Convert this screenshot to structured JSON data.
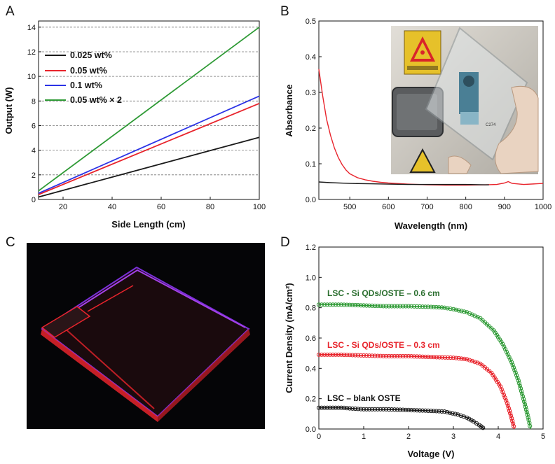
{
  "panels": {
    "a": "A",
    "b": "B",
    "c": "C",
    "d": "D"
  },
  "colors": {
    "black": "#1a1a1a",
    "red": "#e8242c",
    "blue": "#2b33e6",
    "green": "#2e9a35",
    "green_dark": "#2a6e2e"
  },
  "chart_data": [
    {
      "panel": "A",
      "type": "line",
      "xlabel": "Side Length  (cm)",
      "ylabel": "Output (W)",
      "xlim": [
        10,
        100
      ],
      "ylim": [
        0,
        14.5
      ],
      "xticks": [
        20,
        40,
        60,
        80,
        100
      ],
      "yticks": [
        0,
        2,
        4,
        6,
        8,
        10,
        12,
        14
      ],
      "grid": "horizontal dashed",
      "legend": "top-left",
      "series": [
        {
          "name": "0.025 wt%",
          "color": "#1a1a1a",
          "x": [
            10,
            100
          ],
          "y": [
            0.2,
            5.05
          ]
        },
        {
          "name": "0.05 wt%",
          "color": "#e8242c",
          "x": [
            10,
            100
          ],
          "y": [
            0.4,
            7.8
          ]
        },
        {
          "name": "0.1 wt%",
          "color": "#2b33e6",
          "x": [
            10,
            100
          ],
          "y": [
            0.5,
            8.4
          ]
        },
        {
          "name": "0.05 wt%  × 2",
          "color": "#2e9a35",
          "x": [
            10,
            100
          ],
          "y": [
            0.7,
            14.0
          ]
        }
      ]
    },
    {
      "panel": "B",
      "type": "line",
      "xlabel": "Wavelength (nm)",
      "ylabel": "Absorbance",
      "xlim": [
        420,
        1000
      ],
      "ylim": [
        0,
        0.5
      ],
      "xticks": [
        500,
        600,
        700,
        800,
        900,
        1000
      ],
      "yticks": [
        0.0,
        0.1,
        0.2,
        0.3,
        0.4,
        0.5
      ],
      "series": [
        {
          "color": "#e8242c",
          "x": [
            420,
            430,
            440,
            450,
            460,
            470,
            480,
            490,
            500,
            520,
            540,
            560,
            580,
            600,
            650,
            700,
            750,
            800,
            850,
            880,
            900,
            910,
            920,
            950,
            1000
          ],
          "y": [
            0.365,
            0.29,
            0.225,
            0.18,
            0.145,
            0.118,
            0.098,
            0.083,
            0.072,
            0.061,
            0.055,
            0.051,
            0.048,
            0.046,
            0.043,
            0.041,
            0.04,
            0.04,
            0.041,
            0.042,
            0.046,
            0.05,
            0.045,
            0.042,
            0.045
          ]
        },
        {
          "color": "#1a1a1a",
          "x": [
            420,
            450,
            500,
            550,
            600,
            650,
            700,
            750,
            800,
            850,
            860
          ],
          "y": [
            0.049,
            0.047,
            0.045,
            0.044,
            0.043,
            0.042,
            0.042,
            0.042,
            0.042,
            0.041,
            0.041
          ]
        }
      ],
      "photo": {
        "photo_label": "C274"
      }
    },
    {
      "panel": "D",
      "type": "line",
      "xlabel": "Voltage (V)",
      "ylabel": "Current Density (mA/cm²)",
      "xlim": [
        0,
        5
      ],
      "ylim": [
        0,
        1.2
      ],
      "xticks": [
        0,
        1,
        2,
        3,
        4,
        5
      ],
      "yticks": [
        0.0,
        0.2,
        0.4,
        0.6,
        0.8,
        1.0,
        1.2
      ],
      "series": [
        {
          "name": "LSC - Si QDs/OSTE – 0.6 cm",
          "color": "#2e9a35",
          "x": [
            0,
            0.5,
            1,
            1.5,
            2,
            2.5,
            2.8,
            3.0,
            3.3,
            3.6,
            3.9,
            4.1,
            4.3,
            4.45,
            4.58,
            4.68,
            4.72
          ],
          "y": [
            0.82,
            0.82,
            0.815,
            0.81,
            0.81,
            0.805,
            0.8,
            0.79,
            0.77,
            0.73,
            0.65,
            0.56,
            0.44,
            0.32,
            0.18,
            0.06,
            0.0
          ]
        },
        {
          "name": "LSC - Si QDs/OSTE – 0.3 cm",
          "color": "#e8242c",
          "x": [
            0,
            0.5,
            1,
            1.5,
            2,
            2.5,
            3.0,
            3.3,
            3.6,
            3.85,
            4.05,
            4.2,
            4.3,
            4.36
          ],
          "y": [
            0.49,
            0.49,
            0.485,
            0.48,
            0.48,
            0.475,
            0.47,
            0.46,
            0.43,
            0.37,
            0.28,
            0.17,
            0.07,
            0.0
          ]
        },
        {
          "name": "LSC – blank OSTE",
          "color": "#1a1a1a",
          "x": [
            0,
            0.5,
            1,
            1.5,
            2,
            2.5,
            2.8,
            3.1,
            3.3,
            3.45,
            3.58,
            3.66,
            3.7
          ],
          "y": [
            0.14,
            0.14,
            0.13,
            0.13,
            0.125,
            0.12,
            0.115,
            0.095,
            0.075,
            0.05,
            0.025,
            0.008,
            0.0
          ]
        }
      ]
    }
  ]
}
